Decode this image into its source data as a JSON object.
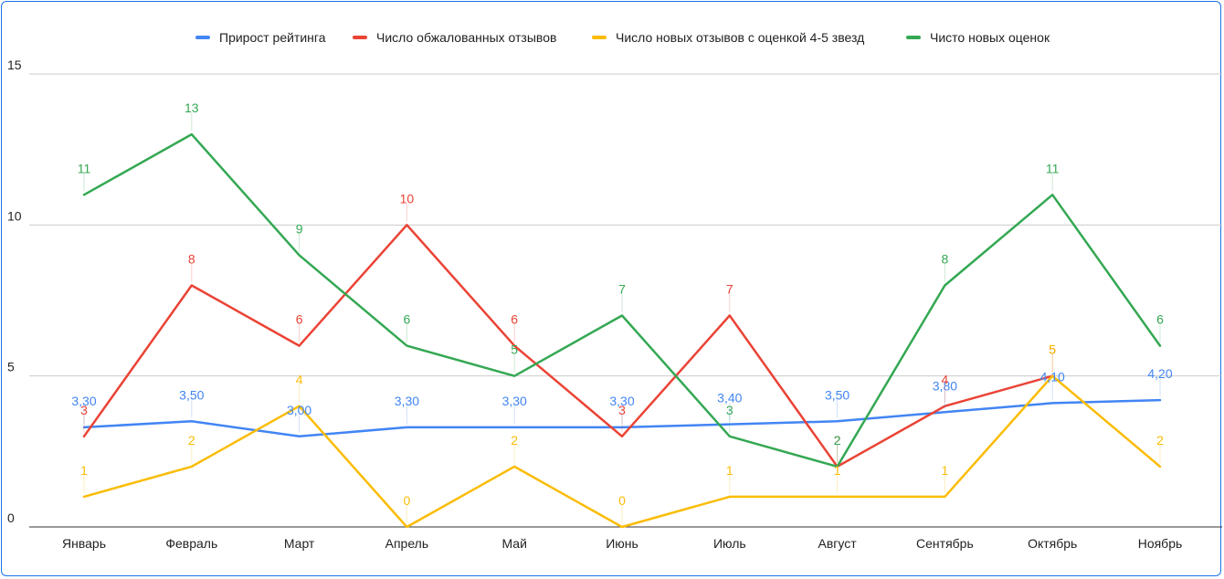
{
  "chart_data": {
    "type": "line",
    "title": "",
    "xlabel": "",
    "ylabel": "",
    "categories": [
      "Январь",
      "Февраль",
      "Март",
      "Апрель",
      "Май",
      "Июнь",
      "Июль",
      "Август",
      "Сентябрь",
      "Октябрь",
      "Ноябрь"
    ],
    "ylim": [
      0,
      15
    ],
    "yticks": [
      0,
      5,
      10,
      15
    ],
    "grid": true,
    "legend_position": "top",
    "series": [
      {
        "name": "Прирост рейтинга",
        "color": "#4285f4",
        "values": [
          3.3,
          3.5,
          3.0,
          3.3,
          3.3,
          3.3,
          3.4,
          3.5,
          3.8,
          4.1,
          4.2
        ],
        "labels": [
          "3,30",
          "3,50",
          "3,00",
          "3,30",
          "3,30",
          "3,30",
          "3,40",
          "3,50",
          "3,80",
          "4,10",
          "4,20"
        ]
      },
      {
        "name": "Число обжалованных отзывов",
        "color": "#ea4335",
        "values": [
          3,
          8,
          6,
          10,
          6,
          3,
          7,
          2,
          4,
          5,
          null
        ],
        "labels": [
          "3",
          "8",
          "6",
          "10",
          "6",
          "3",
          "7",
          "2",
          "4",
          "5",
          ""
        ]
      },
      {
        "name": "Число новых отзывов с оценкой 4-5 звезд",
        "color": "#fbbc04",
        "values": [
          1,
          2,
          4,
          0,
          2,
          0,
          1,
          1,
          1,
          5,
          2
        ],
        "labels": [
          "1",
          "2",
          "4",
          "0",
          "2",
          "0",
          "1",
          "1",
          "1",
          "5",
          "2"
        ]
      },
      {
        "name": "Чисто новых оценок",
        "color": "#34a853",
        "values": [
          11,
          13,
          9,
          6,
          5,
          7,
          3,
          2,
          8,
          11,
          6
        ],
        "labels": [
          "11",
          "13",
          "9",
          "6",
          "5",
          "7",
          "3",
          "2",
          "8",
          "11",
          "6"
        ]
      }
    ]
  }
}
